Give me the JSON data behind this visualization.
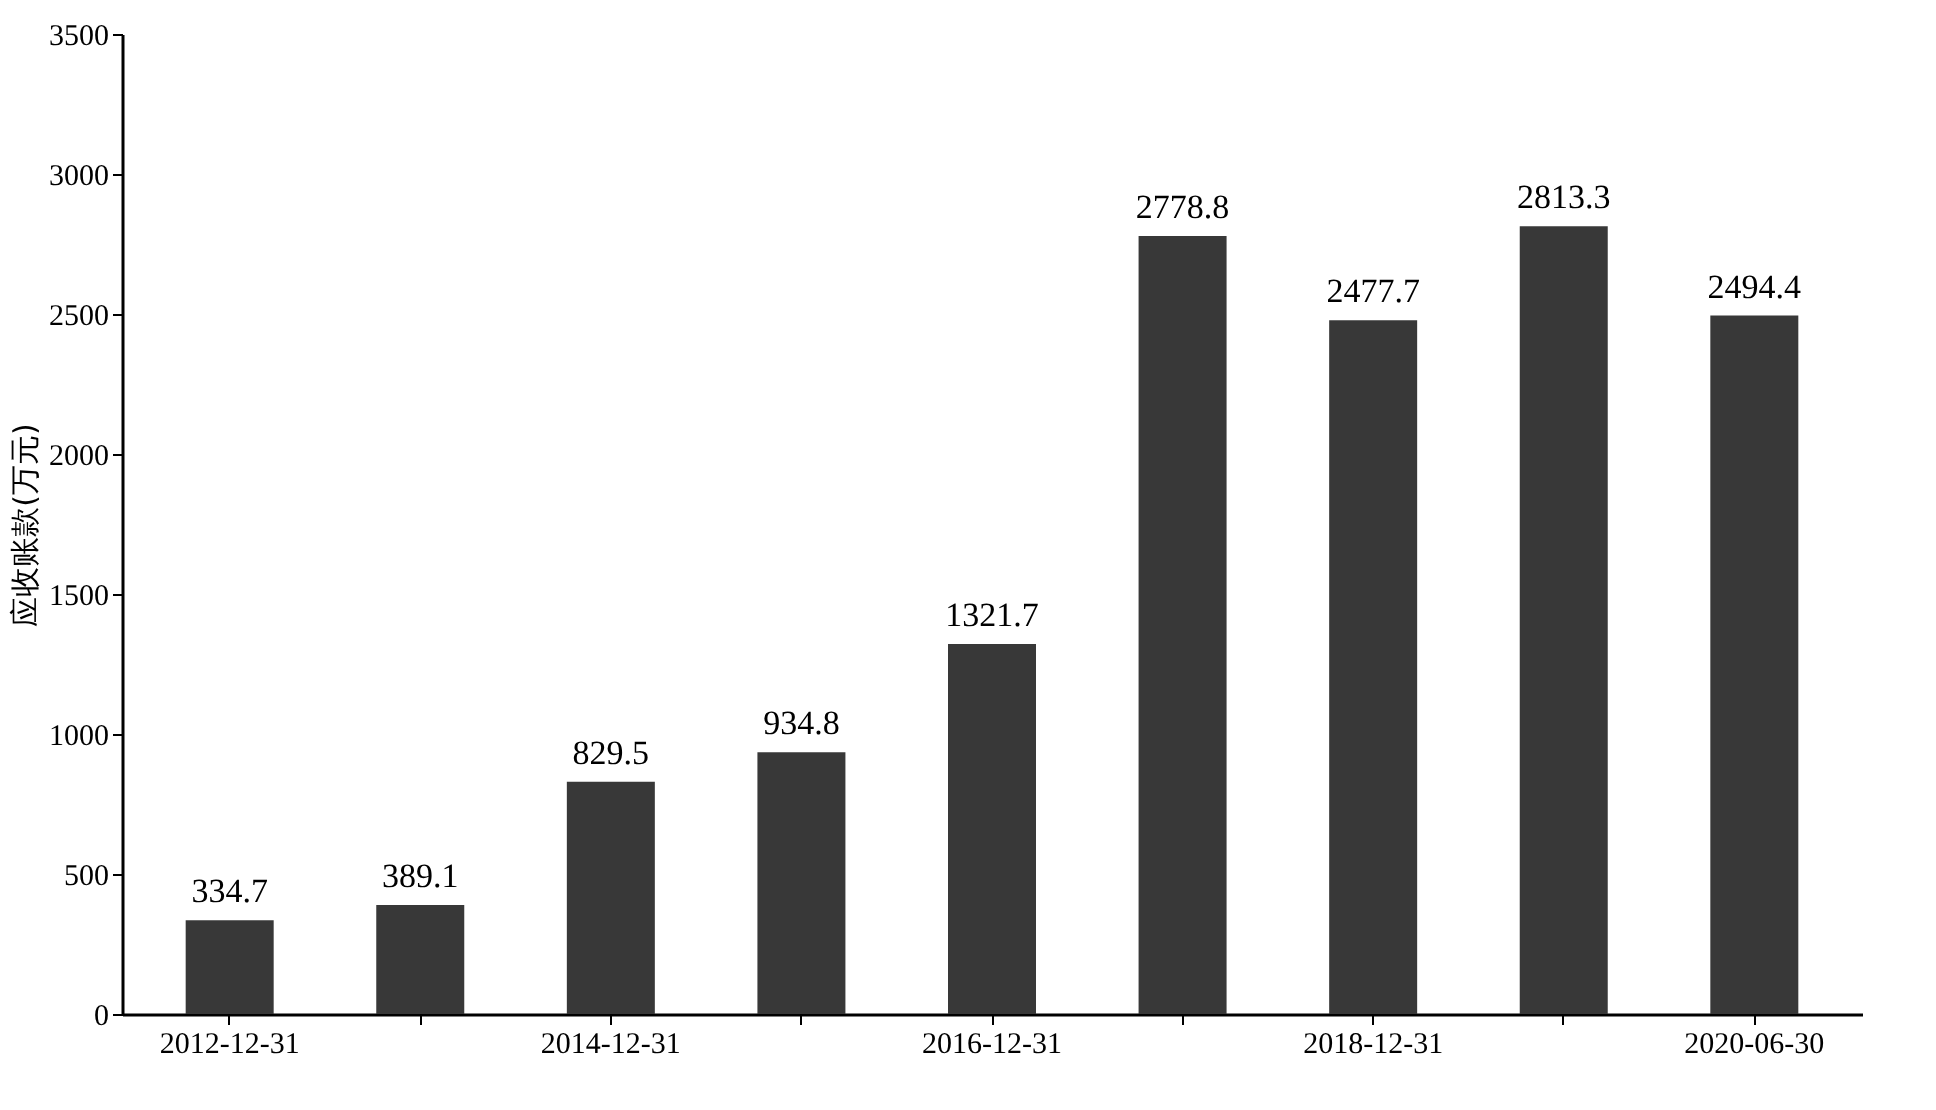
{
  "chart_data": {
    "type": "bar",
    "ylabel": "应收账款(万元)",
    "categories": [
      "2012-12-31",
      null,
      "2014-12-31",
      null,
      "2016-12-31",
      null,
      "2018-12-31",
      null,
      "2020-06-30"
    ],
    "values": [
      334.7,
      389.1,
      829.5,
      934.8,
      1321.7,
      2778.8,
      2477.7,
      2813.3,
      2494.4
    ],
    "color": "#383838",
    "ylim": [
      0,
      3500
    ],
    "yticks": [
      0,
      500,
      1000,
      1500,
      2000,
      2500,
      3000,
      3500
    ],
    "data_labels": true,
    "grid": false
  }
}
